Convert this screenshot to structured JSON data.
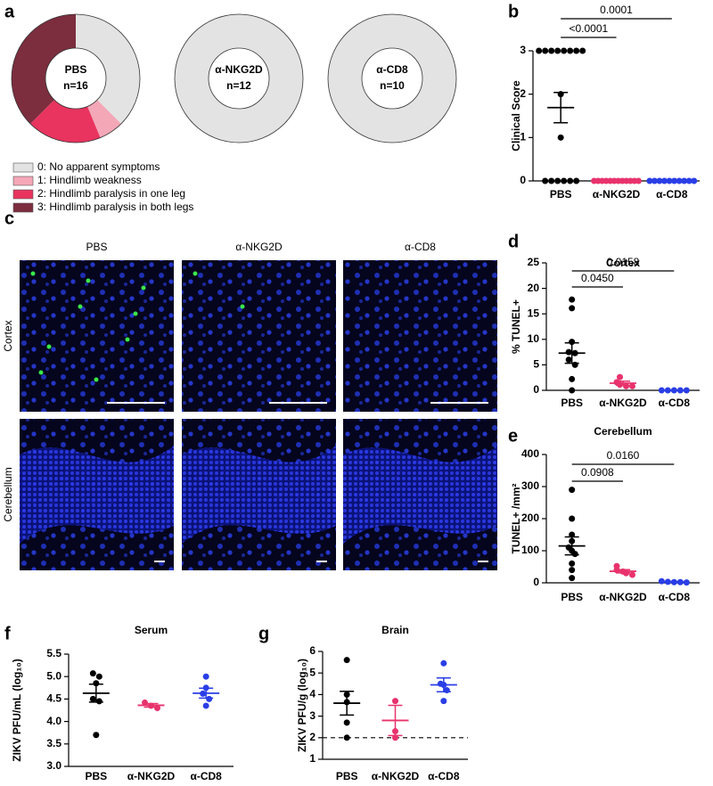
{
  "chart_data": [
    {
      "type": "donut",
      "panel": "a",
      "categories": [
        "0: No apparent symptoms",
        "1: Hindlimb weakness",
        "2: Hindlimb paralysis in one leg",
        "3: Hindlimb paralysis in both legs"
      ],
      "colors": [
        "#e3e3e3",
        "#f4a7b7",
        "#e8345f",
        "#7c2d3e"
      ],
      "groups": [
        {
          "name": "PBS",
          "n_label": "n=16",
          "values": [
            6,
            1,
            3,
            6
          ]
        },
        {
          "name": "α-NKG2D",
          "n_label": "n=12",
          "values": [
            12,
            0,
            0,
            0
          ]
        },
        {
          "name": "α-CD8",
          "n_label": "n=10",
          "values": [
            10,
            0,
            0,
            0
          ]
        }
      ]
    },
    {
      "type": "dotplot",
      "panel": "b",
      "ylabel": "Clinical Score",
      "categories": [
        "PBS",
        "α-NKG2D",
        "α-CD8"
      ],
      "colors": [
        "#000000",
        "#e8336d",
        "#2a3ee6"
      ],
      "values": [
        [
          3,
          3,
          3,
          3,
          3,
          3,
          3,
          3,
          2,
          1,
          0,
          0,
          0,
          0,
          0,
          0
        ],
        [
          0,
          0,
          0,
          0,
          0,
          0,
          0,
          0,
          0,
          0,
          0,
          0
        ],
        [
          0,
          0,
          0,
          0,
          0,
          0,
          0,
          0,
          0,
          0
        ]
      ],
      "means": [
        1.69,
        0,
        0
      ],
      "sems": [
        0.35,
        0,
        0
      ],
      "ylim": [
        0,
        3
      ],
      "yticks": [
        0,
        1,
        2,
        3
      ],
      "comparisons": [
        {
          "pair": [
            "PBS",
            "α-NKG2D"
          ],
          "label": "<0.0001"
        },
        {
          "pair": [
            "PBS",
            "α-CD8"
          ],
          "label": "0.0001"
        }
      ]
    },
    {
      "type": "dotplot",
      "panel": "d",
      "title": "Cortex",
      "ylabel": "% TUNEL+",
      "categories": [
        "PBS",
        "α-NKG2D",
        "α-CD8"
      ],
      "colors": [
        "#000000",
        "#e8336d",
        "#2a3ee6"
      ],
      "values": [
        [
          17.8,
          16.1,
          9.5,
          7.5,
          7.3,
          6.0,
          5.0,
          2.2,
          0
        ],
        [
          2.6,
          1.6,
          1.1,
          0.8,
          0.8
        ],
        [
          0,
          0,
          0,
          0,
          0
        ]
      ],
      "means": [
        7.3,
        1.4,
        0
      ],
      "sems": [
        2.0,
        0.4,
        0
      ],
      "ylim": [
        0,
        25
      ],
      "yticks": [
        0,
        5,
        10,
        15,
        20,
        25
      ],
      "comparisons": [
        {
          "pair": [
            "PBS",
            "α-NKG2D"
          ],
          "label": "0.0450"
        },
        {
          "pair": [
            "PBS",
            "α-CD8"
          ],
          "label": "0.0158"
        }
      ]
    },
    {
      "type": "dotplot",
      "panel": "e",
      "title": "Cerebellum",
      "ylabel": "TUNEL+ /mm²",
      "categories": [
        "PBS",
        "α-NKG2D",
        "α-CD8"
      ],
      "colors": [
        "#000000",
        "#e8336d",
        "#2a3ee6"
      ],
      "values": [
        [
          290,
          200,
          150,
          130,
          110,
          100,
          90,
          60,
          40,
          15
        ],
        [
          52,
          40,
          35,
          30,
          25
        ],
        [
          5,
          3,
          2,
          2,
          1
        ]
      ],
      "means": [
        115,
        36,
        3
      ],
      "sems": [
        28,
        5,
        1
      ],
      "ylim": [
        0,
        400
      ],
      "yticks": [
        0,
        100,
        200,
        300,
        400
      ],
      "comparisons": [
        {
          "pair": [
            "PBS",
            "α-NKG2D"
          ],
          "label": "0.0908"
        },
        {
          "pair": [
            "PBS",
            "α-CD8"
          ],
          "label": "0.0160"
        }
      ]
    },
    {
      "type": "dotplot",
      "panel": "f",
      "title": "Serum",
      "ylabel": "ZIKV PFU/mL (log₁₀)",
      "categories": [
        "PBS",
        "α-NKG2D",
        "α-CD8"
      ],
      "colors": [
        "#000000",
        "#e8336d",
        "#2a3ee6"
      ],
      "values": [
        [
          5.07,
          5.0,
          4.85,
          4.5,
          4.45,
          3.7
        ],
        [
          4.42,
          4.35,
          4.3
        ],
        [
          5.0,
          4.75,
          4.62,
          4.5,
          4.35
        ]
      ],
      "means": [
        4.63,
        4.36,
        4.63
      ],
      "sems": [
        0.2,
        0.04,
        0.11
      ],
      "ylim": [
        3.0,
        5.5
      ],
      "yticks": [
        {
          "value": 3.0,
          "label": "3.0"
        },
        {
          "value": 3.5,
          "label": "3.5"
        },
        {
          "value": 4.0,
          "label": "4.0"
        },
        {
          "value": 4.5,
          "label": "4.5"
        },
        {
          "value": 5.0,
          "label": "5.0"
        },
        {
          "value": 5.5,
          "label": "5.5"
        }
      ]
    },
    {
      "type": "dotplot",
      "panel": "g",
      "title": "Brain",
      "ylabel": "ZIKV PFU/g (log₁₀)",
      "categories": [
        "PBS",
        "α-NKG2D",
        "α-CD8"
      ],
      "colors": [
        "#000000",
        "#e8336d",
        "#2a3ee6"
      ],
      "values": [
        [
          5.6,
          4.0,
          3.65,
          2.7,
          2.0
        ],
        [
          3.7,
          2.3,
          2.0
        ],
        [
          5.45,
          4.5,
          4.45,
          4.2,
          3.7
        ]
      ],
      "means": [
        3.6,
        2.8,
        4.45
      ],
      "sems": [
        0.55,
        0.7,
        0.32
      ],
      "ylim": [
        1,
        6
      ],
      "yticks": [
        1,
        2,
        3,
        4,
        5,
        6
      ],
      "reference_line": 2
    }
  ],
  "micrographs": {
    "panel": "c",
    "columns": [
      "PBS",
      "α-NKG2D",
      "α-CD8"
    ],
    "rows": [
      "Cortex",
      "Cerebellum"
    ]
  }
}
